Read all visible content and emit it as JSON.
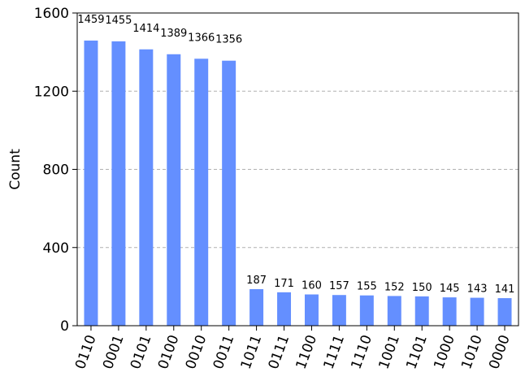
{
  "chart_data": {
    "type": "bar",
    "title": "",
    "xlabel": "",
    "ylabel": "Count",
    "ylim": [
      0,
      1600
    ],
    "yticks": [
      0,
      400,
      800,
      1200,
      1600
    ],
    "grid": "y-dashed",
    "bar_color": "#648fff",
    "categories": [
      "0110",
      "0001",
      "0101",
      "0100",
      "0010",
      "0011",
      "1011",
      "0111",
      "1100",
      "1111",
      "1110",
      "1001",
      "1101",
      "1000",
      "1010",
      "0000"
    ],
    "values": [
      1459,
      1455,
      1414,
      1389,
      1366,
      1356,
      187,
      171,
      160,
      157,
      155,
      152,
      150,
      145,
      143,
      141
    ]
  }
}
